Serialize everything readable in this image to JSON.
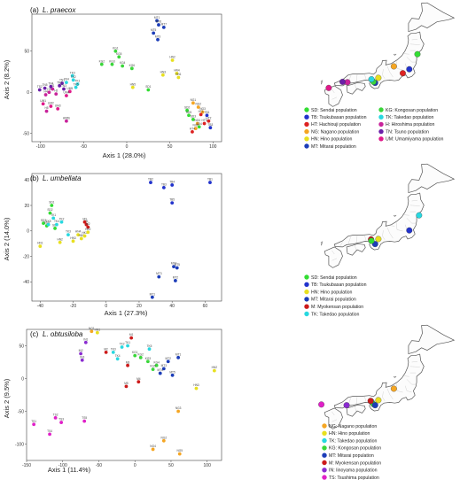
{
  "panels": [
    {
      "label": "(a)",
      "species": "L. praecox",
      "xlabel": "Axis 1 (28.0%)",
      "ylabel": "Axis 2 (8.2%)"
    },
    {
      "label": "(b)",
      "species": "L. umbellata",
      "xlabel": "Axis 1 (27.3%)",
      "ylabel": "Axis 2 (14.0%)"
    },
    {
      "label": "(c)",
      "species": "L. obtusiloba",
      "xlabel": "Axis 1 (11.4%)",
      "ylabel": "Axis 2 (9.5%)"
    }
  ],
  "colors": {
    "SD": "#33dd33",
    "TB": "#2233cc",
    "HT": "#dd2222",
    "NG": "#f5a623",
    "HN": "#e8e020",
    "MT": "#1c3db8",
    "KG": "#3ad63a",
    "TK": "#28d8e0",
    "H": "#c8239b",
    "TN": "#6a1fa8",
    "UM": "#e0198a",
    "M": "#cc1a1a",
    "IN": "#8a2bd0",
    "TS": "#e020c8"
  },
  "legends": [
    [
      {
        "code": "SD",
        "text": "SD: Sendai population"
      },
      {
        "code": "TB",
        "text": "TB: Tsukubasan population"
      },
      {
        "code": "HT",
        "text": "HT: Hachiouji population"
      },
      {
        "code": "NG",
        "text": "NG: Nagano population"
      },
      {
        "code": "HN",
        "text": "HN: Hino population"
      },
      {
        "code": "MT",
        "text": "MT: Mitarai population"
      },
      {
        "code": "KG",
        "text": "KG: Kongosan population"
      },
      {
        "code": "TK",
        "text": "TK: Takedao population"
      },
      {
        "code": "H",
        "text": "H: Hiroshima population"
      },
      {
        "code": "TN",
        "text": "TN: Tsuno population"
      },
      {
        "code": "UM",
        "text": "UM: Umamiyama population"
      }
    ],
    [
      {
        "code": "SD",
        "text": "SD: Sendai population"
      },
      {
        "code": "TB",
        "text": "TB: Tsukubasan population"
      },
      {
        "code": "HN",
        "text": "HN: Hino population"
      },
      {
        "code": "MT",
        "text": "MT: Mitarai population"
      },
      {
        "code": "M",
        "text": "M:   Myokensan population"
      },
      {
        "code": "TK",
        "text": "TK: Takedao population"
      }
    ],
    [
      {
        "code": "NG",
        "text": "NG: Nagano population"
      },
      {
        "code": "HN",
        "text": "HN: Hino population"
      },
      {
        "code": "TK",
        "text": "TK: Takedao population"
      },
      {
        "code": "KG",
        "text": "KG: Kongosan population"
      },
      {
        "code": "MT",
        "text": "MT: Mitarai population"
      },
      {
        "code": "M",
        "text": "M:   Myokensan population"
      },
      {
        "code": "IN",
        "text": "IN:  Iinoyama population"
      },
      {
        "code": "TS",
        "text": "TS: Tsushima population"
      }
    ]
  ],
  "maps": [
    {
      "sites": [
        {
          "code": "SD",
          "lon": 141.1,
          "lat": 38.3
        },
        {
          "code": "TB",
          "lon": 140.1,
          "lat": 36.2
        },
        {
          "code": "HT",
          "lon": 139.3,
          "lat": 35.65
        },
        {
          "code": "NG",
          "lon": 138.2,
          "lat": 36.6
        },
        {
          "code": "HN",
          "lon": 136.3,
          "lat": 35.0
        },
        {
          "code": "MT",
          "lon": 135.9,
          "lat": 34.3
        },
        {
          "code": "KG",
          "lon": 135.7,
          "lat": 34.45
        },
        {
          "code": "TK",
          "lon": 135.45,
          "lat": 34.8
        },
        {
          "code": "H",
          "lon": 132.5,
          "lat": 34.4
        },
        {
          "code": "TN",
          "lon": 131.9,
          "lat": 34.45
        },
        {
          "code": "UM",
          "lon": 130.2,
          "lat": 33.6
        }
      ]
    },
    {
      "sites": [
        {
          "code": "TK",
          "lon": 141.3,
          "lat": 38.3
        },
        {
          "code": "TB",
          "lon": 140.1,
          "lat": 36.2
        },
        {
          "code": "M",
          "lon": 135.4,
          "lat": 34.95
        },
        {
          "code": "HN",
          "lon": 136.3,
          "lat": 35.0
        },
        {
          "code": "MT",
          "lon": 135.9,
          "lat": 34.3
        },
        {
          "code": "SD",
          "lon": 135.45,
          "lat": 34.75
        }
      ]
    },
    {
      "sites": [
        {
          "code": "NG",
          "lon": 138.2,
          "lat": 36.6
        },
        {
          "code": "HN",
          "lon": 136.3,
          "lat": 35.0
        },
        {
          "code": "TK",
          "lon": 135.45,
          "lat": 34.8
        },
        {
          "code": "KG",
          "lon": 135.7,
          "lat": 34.45
        },
        {
          "code": "MT",
          "lon": 135.9,
          "lat": 34.3
        },
        {
          "code": "M",
          "lon": 135.35,
          "lat": 34.9
        },
        {
          "code": "IN",
          "lon": 132.4,
          "lat": 34.3
        },
        {
          "code": "TS",
          "lon": 129.3,
          "lat": 34.4
        }
      ]
    }
  ],
  "chart_data": [
    {
      "type": "scatter",
      "title": "(a) L. praecox",
      "xlabel": "Axis 1 (28.0%)",
      "ylabel": "Axis 2 (8.2%)",
      "xlim": [
        -110,
        110
      ],
      "ylim": [
        -60,
        95
      ],
      "xticks": [
        -100,
        -50,
        0,
        50,
        100
      ],
      "yticks": [
        -50,
        0,
        50
      ],
      "points": [
        {
          "id": "MT1",
          "pop": "MT",
          "x": 35,
          "y": 87
        },
        {
          "id": "MT6",
          "pop": "MT",
          "x": 37,
          "y": 82
        },
        {
          "id": "MT7",
          "pop": "MT",
          "x": 43,
          "y": 79
        },
        {
          "id": "MT5",
          "pop": "MT",
          "x": 31,
          "y": 72
        },
        {
          "id": "MT3",
          "pop": "MT",
          "x": 36,
          "y": 64
        },
        {
          "id": "KG1",
          "pop": "KG",
          "x": -13,
          "y": 50
        },
        {
          "id": "KG5",
          "pop": "KG",
          "x": -9,
          "y": 43
        },
        {
          "id": "KG3",
          "pop": "KG",
          "x": -17,
          "y": 34
        },
        {
          "id": "KG4",
          "pop": "KG",
          "x": -5,
          "y": 32
        },
        {
          "id": "KG6",
          "pop": "KG",
          "x": 6,
          "y": 29
        },
        {
          "id": "KG2",
          "pop": "KG",
          "x": -29,
          "y": 34
        },
        {
          "id": "HN2",
          "pop": "HN",
          "x": 53,
          "y": 39
        },
        {
          "id": "HN3",
          "pop": "HN",
          "x": 42,
          "y": 21
        },
        {
          "id": "HN4",
          "pop": "HN",
          "x": 58,
          "y": 23
        },
        {
          "id": "HN1",
          "pop": "HN",
          "x": 60,
          "y": 18
        },
        {
          "id": "HN5",
          "pop": "HN",
          "x": 7,
          "y": 6
        },
        {
          "id": "SD1",
          "pop": "SD",
          "x": 25,
          "y": 3
        },
        {
          "id": "TK3",
          "pop": "TK",
          "x": -63,
          "y": 20
        },
        {
          "id": "TK2",
          "pop": "TK",
          "x": -62,
          "y": 15
        },
        {
          "id": "TK4",
          "pop": "TK",
          "x": -70,
          "y": 12
        },
        {
          "id": "TK1",
          "pop": "TK",
          "x": -57,
          "y": 10
        },
        {
          "id": "TK5",
          "pop": "TK",
          "x": -59,
          "y": 6
        },
        {
          "id": "TN1",
          "pop": "TN",
          "x": -75,
          "y": 11
        },
        {
          "id": "TN2",
          "pop": "TN",
          "x": -78,
          "y": 8
        },
        {
          "id": "TN3",
          "pop": "TN",
          "x": -73,
          "y": 4
        },
        {
          "id": "UM5",
          "pop": "UM",
          "x": -66,
          "y": 1
        },
        {
          "id": "H1",
          "pop": "H",
          "x": -86,
          "y": 4
        },
        {
          "id": "H2",
          "pop": "H",
          "x": -82,
          "y": -2
        },
        {
          "id": "H3",
          "pop": "H",
          "x": -90,
          "y": 0
        },
        {
          "id": "TN4",
          "pop": "TN",
          "x": -88,
          "y": 7
        },
        {
          "id": "UM4",
          "pop": "UM",
          "x": -70,
          "y": -4
        },
        {
          "id": "TN5",
          "pop": "TN",
          "x": -95,
          "y": 5
        },
        {
          "id": "TS2",
          "pop": "TN",
          "x": -101,
          "y": 3
        },
        {
          "id": "H4",
          "pop": "H",
          "x": -94,
          "y": -3
        },
        {
          "id": "UM1",
          "pop": "UM",
          "x": -97,
          "y": -14
        },
        {
          "id": "UM2",
          "pop": "UM",
          "x": -88,
          "y": -17
        },
        {
          "id": "UM3",
          "pop": "UM",
          "x": -80,
          "y": -20
        },
        {
          "id": "H5",
          "pop": "H",
          "x": -93,
          "y": -23
        },
        {
          "id": "HN5b",
          "pop": "H",
          "x": -70,
          "y": -35
        },
        {
          "id": "NG1",
          "pop": "NG",
          "x": 77,
          "y": -13
        },
        {
          "id": "NG2",
          "pop": "NG",
          "x": 83,
          "y": -18
        },
        {
          "id": "SD2",
          "pop": "SD",
          "x": 70,
          "y": -22
        },
        {
          "id": "NG3",
          "pop": "NG",
          "x": 88,
          "y": -24
        },
        {
          "id": "HT1",
          "pop": "HT",
          "x": 86,
          "y": -27
        },
        {
          "id": "SD5",
          "pop": "SD",
          "x": 72,
          "y": -28
        },
        {
          "id": "TB1",
          "pop": "TB",
          "x": 93,
          "y": -28
        },
        {
          "id": "SD3",
          "pop": "SD",
          "x": 77,
          "y": -33
        },
        {
          "id": "NG4",
          "pop": "NG",
          "x": 82,
          "y": -38
        },
        {
          "id": "HT3",
          "pop": "HT",
          "x": 90,
          "y": -38
        },
        {
          "id": "HT2",
          "pop": "HT",
          "x": 95,
          "y": -35
        },
        {
          "id": "NG5",
          "pop": "NG",
          "x": 80,
          "y": -44
        },
        {
          "id": "HT4",
          "pop": "HT",
          "x": 76,
          "y": -48
        },
        {
          "id": "SD4",
          "pop": "SD",
          "x": 84,
          "y": -42
        },
        {
          "id": "TB3",
          "pop": "TB",
          "x": 97,
          "y": -43
        }
      ]
    },
    {
      "type": "scatter",
      "title": "(b) L. umbellata",
      "xlabel": "Axis 1 (27.3%)",
      "ylabel": "Axis 2 (14.0%)",
      "xlim": [
        -45,
        70
      ],
      "ylim": [
        -55,
        45
      ],
      "xticks": [
        -40,
        -20,
        0,
        20,
        40,
        60
      ],
      "yticks": [
        -40,
        -20,
        0,
        20,
        40
      ],
      "points": [
        {
          "id": "TB1",
          "pop": "TB",
          "x": 63,
          "y": 38
        },
        {
          "id": "TB2",
          "pop": "TB",
          "x": 27,
          "y": 38
        },
        {
          "id": "TB3",
          "pop": "TB",
          "x": 35,
          "y": 34
        },
        {
          "id": "TB4",
          "pop": "TB",
          "x": 40,
          "y": 36
        },
        {
          "id": "TB5",
          "pop": "TB",
          "x": 40,
          "y": 22
        },
        {
          "id": "SD1",
          "pop": "SD",
          "x": -33,
          "y": 20
        },
        {
          "id": "SD2",
          "pop": "SD",
          "x": -34,
          "y": 14
        },
        {
          "id": "SD3",
          "pop": "SD",
          "x": -38,
          "y": 6
        },
        {
          "id": "SD4",
          "pop": "SD",
          "x": -36,
          "y": 4
        },
        {
          "id": "SD5",
          "pop": "SD",
          "x": -31,
          "y": 2
        },
        {
          "id": "TK1",
          "pop": "TK",
          "x": -32,
          "y": 10
        },
        {
          "id": "TK2",
          "pop": "TK",
          "x": -27,
          "y": 7
        },
        {
          "id": "TK3",
          "pop": "TK",
          "x": -23,
          "y": -3
        },
        {
          "id": "TK4",
          "pop": "TK",
          "x": -30,
          "y": 5
        },
        {
          "id": "TK5",
          "pop": "TK",
          "x": -35,
          "y": 5
        },
        {
          "id": "M1",
          "pop": "M",
          "x": -12,
          "y": 5
        },
        {
          "id": "M2",
          "pop": "M",
          "x": -11,
          "y": 3
        },
        {
          "id": "M3",
          "pop": "M",
          "x": -13,
          "y": 7
        },
        {
          "id": "HN1",
          "pop": "HN",
          "x": -40,
          "y": -12
        },
        {
          "id": "HN2",
          "pop": "HN",
          "x": -28,
          "y": -9
        },
        {
          "id": "HN3",
          "pop": "HN",
          "x": -20,
          "y": -8
        },
        {
          "id": "HN4",
          "pop": "HN",
          "x": -17,
          "y": -3
        },
        {
          "id": "HN5",
          "pop": "HN",
          "x": -15,
          "y": -6
        },
        {
          "id": "HK1",
          "pop": "HN",
          "x": -13,
          "y": -4
        },
        {
          "id": "HK2",
          "pop": "HN",
          "x": -11,
          "y": -1
        },
        {
          "id": "MT1",
          "pop": "MT",
          "x": 28,
          "y": -52
        },
        {
          "id": "MT2",
          "pop": "MT",
          "x": 42,
          "y": -39
        },
        {
          "id": "MT3",
          "pop": "MT",
          "x": 32,
          "y": -36
        },
        {
          "id": "MT4",
          "pop": "MT",
          "x": 41,
          "y": -28
        },
        {
          "id": "MT5",
          "pop": "MT",
          "x": 43,
          "y": -29
        }
      ]
    },
    {
      "type": "scatter",
      "title": "(c) L. obtusiloba",
      "xlabel": "Axis 1 (11.4%)",
      "ylabel": "Axis 2 (9.5%)",
      "xlim": [
        -150,
        120
      ],
      "ylim": [
        -125,
        75
      ],
      "xticks": [
        -150,
        -100,
        -50,
        0,
        50,
        100
      ],
      "yticks": [
        -100,
        -50,
        0,
        50
      ],
      "points": [
        {
          "id": "NG1",
          "pop": "NG",
          "x": -60,
          "y": 72
        },
        {
          "id": "NG2",
          "pop": "NG",
          "x": 40,
          "y": -95
        },
        {
          "id": "NG3",
          "pop": "NG",
          "x": 60,
          "y": -50
        },
        {
          "id": "NG4",
          "pop": "NG",
          "x": 25,
          "y": -108
        },
        {
          "id": "NG5",
          "pop": "NG",
          "x": 62,
          "y": -115
        },
        {
          "id": "HN1",
          "pop": "HN",
          "x": -52,
          "y": 70
        },
        {
          "id": "HN2",
          "pop": "HN",
          "x": 110,
          "y": 12
        },
        {
          "id": "HN3",
          "pop": "HN",
          "x": 85,
          "y": -15
        },
        {
          "id": "TK1",
          "pop": "TK",
          "x": -10,
          "y": 50
        },
        {
          "id": "TK2",
          "pop": "TK",
          "x": -18,
          "y": 48
        },
        {
          "id": "TK3",
          "pop": "TK",
          "x": -30,
          "y": 40
        },
        {
          "id": "TK4",
          "pop": "TK",
          "x": -24,
          "y": 30
        },
        {
          "id": "TK5",
          "pop": "TK",
          "x": 20,
          "y": 45
        },
        {
          "id": "KG1",
          "pop": "KG",
          "x": 0,
          "y": 35
        },
        {
          "id": "KG2",
          "pop": "KG",
          "x": 8,
          "y": 32
        },
        {
          "id": "KG3",
          "pop": "KG",
          "x": 18,
          "y": 26
        },
        {
          "id": "KG4",
          "pop": "KG",
          "x": 30,
          "y": 20
        },
        {
          "id": "KG5",
          "pop": "KG",
          "x": 25,
          "y": 14
        },
        {
          "id": "MT1",
          "pop": "MT",
          "x": 60,
          "y": 32
        },
        {
          "id": "MT2",
          "pop": "MT",
          "x": 46,
          "y": 26
        },
        {
          "id": "MT3",
          "pop": "MT",
          "x": 40,
          "y": 15
        },
        {
          "id": "MT4",
          "pop": "MT",
          "x": 35,
          "y": 8
        },
        {
          "id": "MT5",
          "pop": "MT",
          "x": 52,
          "y": 5
        },
        {
          "id": "M1",
          "pop": "M",
          "x": -5,
          "y": 62
        },
        {
          "id": "M2",
          "pop": "M",
          "x": -40,
          "y": 40
        },
        {
          "id": "M3",
          "pop": "M",
          "x": -10,
          "y": 20
        },
        {
          "id": "M4",
          "pop": "M",
          "x": 5,
          "y": -5
        },
        {
          "id": "M5",
          "pop": "M",
          "x": -12,
          "y": -12
        },
        {
          "id": "IN1",
          "pop": "IN",
          "x": -68,
          "y": 55
        },
        {
          "id": "IN2",
          "pop": "IN",
          "x": -75,
          "y": 38
        },
        {
          "id": "IN3",
          "pop": "IN",
          "x": -73,
          "y": 28
        },
        {
          "id": "TS1",
          "pop": "TS",
          "x": -140,
          "y": -70
        },
        {
          "id": "TS2",
          "pop": "TS",
          "x": -110,
          "y": -60
        },
        {
          "id": "TS3",
          "pop": "TS",
          "x": -102,
          "y": -67
        },
        {
          "id": "TS4",
          "pop": "TS",
          "x": -118,
          "y": -85
        },
        {
          "id": "TS5",
          "pop": "TS",
          "x": -70,
          "y": -65
        }
      ]
    }
  ]
}
